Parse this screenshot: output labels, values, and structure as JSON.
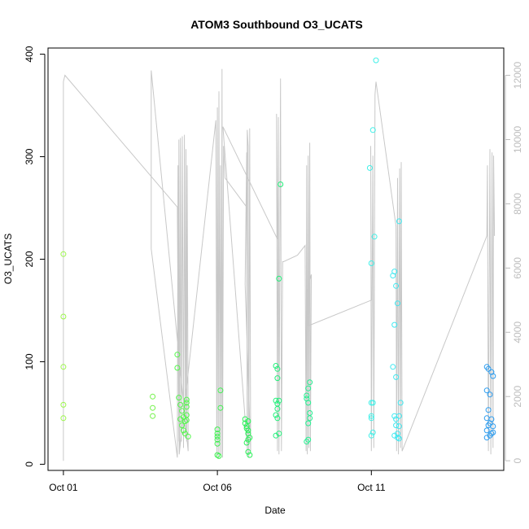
{
  "chart_data": {
    "type": "scatter",
    "title": "ATOM3 Southbound O3_UCATS",
    "xlabel": "Date",
    "ylabel": "O3_UCATS",
    "x_ticks": [
      {
        "label": "Oct 01",
        "day": 1.0
      },
      {
        "label": "Oct 06",
        "day": 6.0
      },
      {
        "label": "Oct 11",
        "day": 11.0
      }
    ],
    "xlim": [
      0.5,
      15.3
    ],
    "ylim": [
      -6,
      406
    ],
    "y_ticks": [
      0,
      100,
      200,
      300,
      400
    ],
    "y2lim": [
      -300,
      12850
    ],
    "y2_ticks": [
      0,
      2000,
      4000,
      6000,
      8000,
      10000,
      12000
    ],
    "grid": false,
    "secondary_series_color": "#c8c8c8",
    "color_scale": [
      "#9cf84a",
      "#52f84a",
      "#1ef06a",
      "#30f0a8",
      "#3ff0e8",
      "#27c8f0",
      "#2a9cf0"
    ],
    "series": [
      {
        "color": "#9cf84a",
        "points": [
          [
            1.0,
            205
          ],
          [
            1.0,
            144
          ],
          [
            1.0,
            95
          ],
          [
            1.0,
            58
          ],
          [
            1.0,
            45
          ]
        ]
      },
      {
        "color": "#73f24a",
        "points": [
          [
            3.9,
            66
          ],
          [
            3.9,
            55
          ],
          [
            3.9,
            47
          ]
        ]
      },
      {
        "color": "#52f84a",
        "points": [
          [
            4.7,
            107
          ],
          [
            4.7,
            94
          ],
          [
            4.75,
            65
          ],
          [
            4.8,
            58
          ],
          [
            4.85,
            52
          ],
          [
            4.9,
            46
          ],
          [
            4.95,
            42
          ],
          [
            4.8,
            44
          ],
          [
            4.85,
            38
          ],
          [
            4.9,
            33
          ],
          [
            4.95,
            30
          ],
          [
            5.0,
            63
          ],
          [
            5.0,
            60
          ],
          [
            5.0,
            56
          ],
          [
            5.0,
            48
          ],
          [
            5.0,
            43
          ],
          [
            5.05,
            27
          ]
        ]
      },
      {
        "color": "#3ef04f",
        "points": [
          [
            6.0,
            34
          ],
          [
            6.0,
            30
          ],
          [
            6.0,
            27
          ],
          [
            6.0,
            24
          ],
          [
            6.0,
            20
          ],
          [
            6.0,
            9
          ],
          [
            6.05,
            8
          ],
          [
            6.1,
            72
          ],
          [
            6.1,
            55
          ]
        ]
      },
      {
        "color": "#2cf05a",
        "points": [
          [
            6.9,
            44
          ],
          [
            6.9,
            40
          ],
          [
            6.95,
            37
          ],
          [
            6.95,
            35
          ],
          [
            7.0,
            33
          ],
          [
            7.0,
            30
          ],
          [
            7.0,
            24
          ],
          [
            6.95,
            21
          ],
          [
            7.0,
            12
          ],
          [
            7.05,
            9
          ],
          [
            7.05,
            26
          ],
          [
            7.0,
            42
          ]
        ]
      },
      {
        "color": "#22f07a",
        "points": [
          [
            7.9,
            96
          ],
          [
            7.95,
            93
          ],
          [
            7.95,
            84
          ],
          [
            7.9,
            62
          ],
          [
            7.95,
            59
          ],
          [
            8.0,
            62
          ],
          [
            7.95,
            54
          ],
          [
            7.9,
            48
          ],
          [
            7.95,
            45
          ],
          [
            7.9,
            28
          ],
          [
            8.0,
            30
          ],
          [
            8.0,
            181
          ],
          [
            8.05,
            273
          ]
        ]
      },
      {
        "color": "#22f090",
        "points": [
          [
            8.9,
            67
          ],
          [
            8.9,
            64
          ],
          [
            8.95,
            74
          ],
          [
            9.0,
            80
          ],
          [
            8.95,
            60
          ],
          [
            9.0,
            50
          ],
          [
            9.0,
            45
          ],
          [
            8.95,
            40
          ],
          [
            8.95,
            24
          ],
          [
            8.9,
            22
          ]
        ]
      },
      {
        "color": "#3ff0e8",
        "points": [
          [
            10.95,
            289
          ],
          [
            11.0,
            196
          ],
          [
            11.05,
            326
          ],
          [
            11.1,
            222
          ],
          [
            11.15,
            394
          ],
          [
            11.0,
            60
          ],
          [
            11.05,
            60
          ],
          [
            11.0,
            47
          ],
          [
            11.0,
            45
          ],
          [
            11.05,
            31
          ],
          [
            11.0,
            28
          ]
        ]
      },
      {
        "color": "#40e8f0",
        "points": [
          [
            11.7,
            184
          ],
          [
            11.75,
            188
          ],
          [
            11.8,
            174
          ],
          [
            11.75,
            136
          ],
          [
            11.85,
            157
          ],
          [
            11.9,
            237
          ],
          [
            11.7,
            95
          ],
          [
            11.8,
            85
          ],
          [
            11.95,
            60
          ],
          [
            11.75,
            47
          ],
          [
            11.8,
            44
          ],
          [
            11.9,
            47
          ],
          [
            11.8,
            38
          ],
          [
            11.85,
            30
          ],
          [
            11.75,
            28
          ],
          [
            11.9,
            25
          ],
          [
            11.85,
            26
          ],
          [
            11.9,
            37
          ]
        ]
      },
      {
        "color": "#2a9cf0",
        "points": [
          [
            14.75,
            95
          ],
          [
            14.8,
            93
          ],
          [
            14.9,
            90
          ],
          [
            14.95,
            86
          ],
          [
            14.75,
            72
          ],
          [
            14.85,
            68
          ],
          [
            14.8,
            53
          ],
          [
            14.75,
            45
          ],
          [
            14.9,
            44
          ],
          [
            14.85,
            40
          ],
          [
            14.95,
            37
          ],
          [
            14.8,
            38
          ],
          [
            14.75,
            33
          ],
          [
            14.9,
            30
          ],
          [
            14.85,
            28
          ],
          [
            14.75,
            26
          ],
          [
            14.95,
            31
          ]
        ]
      }
    ],
    "secondary_line_y2": [
      [
        1.0,
        0
      ],
      [
        1.0,
        11800
      ],
      [
        1.05,
        12000
      ],
      [
        4.7,
        7900
      ],
      [
        4.75,
        600
      ],
      [
        4.75,
        10000
      ],
      [
        4.78,
        400
      ],
      [
        4.8,
        10050
      ],
      [
        4.83,
        600
      ],
      [
        4.86,
        10100
      ],
      [
        4.9,
        400
      ],
      [
        4.93,
        10150
      ],
      [
        4.96,
        700
      ],
      [
        4.98,
        9700
      ],
      [
        5.0,
        600
      ],
      [
        5.02,
        9200
      ],
      [
        5.05,
        300
      ],
      [
        3.85,
        12150
      ],
      [
        3.85,
        6600
      ],
      [
        4.7,
        100
      ],
      [
        4.72,
        9200
      ],
      [
        4.76,
        200
      ],
      [
        5.95,
        10600
      ],
      [
        5.98,
        200
      ],
      [
        6.0,
        11000
      ],
      [
        6.03,
        100
      ],
      [
        6.05,
        11500
      ],
      [
        6.08,
        200
      ],
      [
        6.1,
        9200
      ],
      [
        6.13,
        200
      ],
      [
        6.15,
        12200
      ],
      [
        6.17,
        100
      ],
      [
        6.2,
        9800
      ],
      [
        6.25,
        8800
      ],
      [
        6.95,
        7900
      ],
      [
        6.97,
        200
      ],
      [
        6.97,
        10300
      ],
      [
        7.0,
        9800
      ],
      [
        7.02,
        100
      ],
      [
        7.05,
        10350
      ],
      [
        7.08,
        300
      ],
      [
        6.9,
        5500
      ],
      [
        6.95,
        9600
      ],
      [
        6.98,
        300
      ],
      [
        6.18,
        10400
      ],
      [
        7.95,
        6900
      ],
      [
        7.92,
        10800
      ],
      [
        7.95,
        300
      ],
      [
        7.98,
        10700
      ],
      [
        8.0,
        200
      ],
      [
        8.05,
        11900
      ],
      [
        8.08,
        300
      ],
      [
        8.12,
        6200
      ],
      [
        8.15,
        6200
      ],
      [
        8.6,
        6400
      ],
      [
        8.85,
        6700
      ],
      [
        8.88,
        300
      ],
      [
        8.9,
        9200
      ],
      [
        8.92,
        200
      ],
      [
        8.95,
        9500
      ],
      [
        8.97,
        400
      ],
      [
        9.0,
        9900
      ],
      [
        9.02,
        300
      ],
      [
        9.05,
        5800
      ],
      [
        8.9,
        5200
      ],
      [
        8.95,
        4200
      ],
      [
        11.0,
        5000
      ],
      [
        10.98,
        9800
      ],
      [
        11.0,
        300
      ],
      [
        11.05,
        9500
      ],
      [
        11.08,
        400
      ],
      [
        11.12,
        11400
      ],
      [
        11.15,
        11800
      ],
      [
        11.8,
        7300
      ],
      [
        11.82,
        300
      ],
      [
        11.85,
        8800
      ],
      [
        11.88,
        200
      ],
      [
        11.92,
        9100
      ],
      [
        11.95,
        400
      ],
      [
        11.97,
        9300
      ],
      [
        12.0,
        300
      ],
      [
        14.75,
        7000
      ],
      [
        14.77,
        9200
      ],
      [
        14.8,
        300
      ],
      [
        14.85,
        9700
      ],
      [
        14.88,
        200
      ],
      [
        14.92,
        9600
      ],
      [
        14.95,
        400
      ],
      [
        14.97,
        9500
      ],
      [
        15.0,
        7000
      ]
    ]
  }
}
